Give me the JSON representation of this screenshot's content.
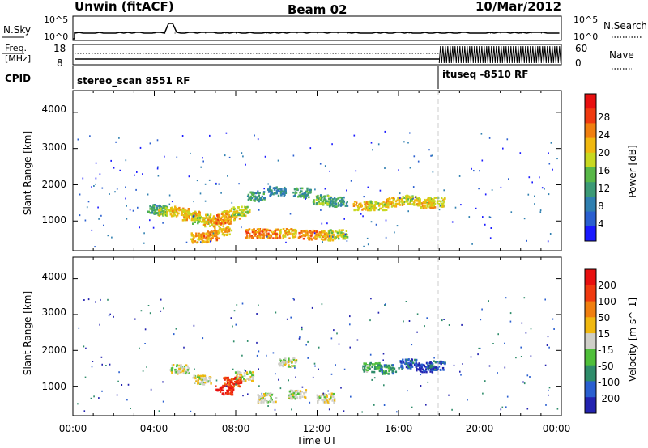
{
  "header": {
    "station": "Unwin (fitACF)",
    "beam": "Beam 02",
    "date": "10/Mar/2012"
  },
  "sky_panel": {
    "left_label": "N.Sky",
    "right_label": "N.Search",
    "left_ticks": [
      "10^5",
      "10^0"
    ],
    "right_ticks": [
      "10^5",
      "10^0"
    ]
  },
  "freq_panel": {
    "left_label_line1": "Freq.",
    "left_label_line2": "[MHz]",
    "right_label": "Nave",
    "left_ticks": [
      "18",
      "8"
    ],
    "right_ticks": [
      "60",
      "0"
    ]
  },
  "cpid": {
    "label": "CPID",
    "mode1": "stereo_scan 8551 RF",
    "mode2": "ituseq -8510 RF",
    "mode_switch_hour": 18.0
  },
  "x_axis": {
    "label": "Time UT",
    "ticks": [
      "00:00",
      "04:00",
      "08:00",
      "12:00",
      "16:00",
      "20:00",
      "00:00"
    ]
  },
  "chart_data": [
    {
      "type": "heatmap",
      "name": "power",
      "ylabel": "Slant Range [km]",
      "yticks": [
        "4000",
        "3000",
        "2000",
        "1000"
      ],
      "ylim": [
        180,
        4600
      ],
      "xlim_hours": [
        0,
        24
      ],
      "colorbar_label": "Power [dB]",
      "colorbar_ticks": [
        "28",
        "24",
        "20",
        "16",
        "12",
        "8",
        "4"
      ],
      "colors": [
        "#1a1aff",
        "#2a5fd0",
        "#2f7fb0",
        "#3c9a76",
        "#58b848",
        "#c8d820",
        "#f0b810",
        "#f07f10",
        "#f03a10",
        "#e81010"
      ],
      "blobs": [
        {
          "t": 4.1,
          "r": 1350,
          "c": 3
        },
        {
          "t": 4.6,
          "r": 1300,
          "c": 5
        },
        {
          "t": 5.2,
          "r": 1260,
          "c": 6
        },
        {
          "t": 5.8,
          "r": 1180,
          "c": 6
        },
        {
          "t": 6.3,
          "r": 1080,
          "c": 5
        },
        {
          "t": 6.8,
          "r": 1000,
          "c": 6
        },
        {
          "t": 7.3,
          "r": 1080,
          "c": 7
        },
        {
          "t": 7.7,
          "r": 1180,
          "c": 6
        },
        {
          "t": 8.2,
          "r": 1300,
          "c": 5
        },
        {
          "t": 6.2,
          "r": 560,
          "c": 6
        },
        {
          "t": 6.7,
          "r": 620,
          "c": 7
        },
        {
          "t": 7.3,
          "r": 760,
          "c": 6
        },
        {
          "t": 8.9,
          "r": 680,
          "c": 7
        },
        {
          "t": 9.7,
          "r": 670,
          "c": 7
        },
        {
          "t": 10.5,
          "r": 680,
          "c": 6
        },
        {
          "t": 11.5,
          "r": 640,
          "c": 7
        },
        {
          "t": 12.4,
          "r": 620,
          "c": 6
        },
        {
          "t": 13.0,
          "r": 660,
          "c": 5
        },
        {
          "t": 9.0,
          "r": 1700,
          "c": 3
        },
        {
          "t": 10.0,
          "r": 1850,
          "c": 2
        },
        {
          "t": 11.2,
          "r": 1800,
          "c": 3
        },
        {
          "t": 12.2,
          "r": 1600,
          "c": 4
        },
        {
          "t": 13.0,
          "r": 1550,
          "c": 3
        },
        {
          "t": 14.2,
          "r": 1450,
          "c": 6
        },
        {
          "t": 15.0,
          "r": 1450,
          "c": 5
        },
        {
          "t": 15.8,
          "r": 1550,
          "c": 6
        },
        {
          "t": 16.6,
          "r": 1600,
          "c": 5
        },
        {
          "t": 17.3,
          "r": 1500,
          "c": 6
        },
        {
          "t": 17.8,
          "r": 1550,
          "c": 5
        }
      ]
    },
    {
      "type": "heatmap",
      "name": "velocity",
      "ylabel": "Slant Range [km]",
      "yticks": [
        "4000",
        "3000",
        "2000",
        "1000"
      ],
      "ylim": [
        180,
        4600
      ],
      "xlim_hours": [
        0,
        24
      ],
      "colorbar_label": "Velocity [m s^-1]",
      "colorbar_ticks": [
        "200",
        "100",
        "50",
        "15",
        "-15",
        "-50",
        "-100",
        "-200"
      ],
      "colors": [
        "#2323b0",
        "#2a5fd0",
        "#2e8c6a",
        "#4fbf3a",
        "#cfcfc8",
        "#f0b810",
        "#f07f10",
        "#f03a10",
        "#e81010"
      ],
      "blobs": [
        {
          "t": 5.2,
          "r": 1500,
          "c": 4
        },
        {
          "t": 6.3,
          "r": 1200,
          "c": 4
        },
        {
          "t": 8.4,
          "r": 1300,
          "c": 4
        },
        {
          "t": 7.4,
          "r": 920,
          "c": 8
        },
        {
          "t": 7.8,
          "r": 1150,
          "c": 7
        },
        {
          "t": 10.5,
          "r": 1700,
          "c": 4
        },
        {
          "t": 11.0,
          "r": 800,
          "c": 4
        },
        {
          "t": 9.5,
          "r": 700,
          "c": 4
        },
        {
          "t": 12.4,
          "r": 700,
          "c": 4
        },
        {
          "t": 14.6,
          "r": 1550,
          "c": 3
        },
        {
          "t": 15.4,
          "r": 1500,
          "c": 2
        },
        {
          "t": 16.4,
          "r": 1650,
          "c": 1
        },
        {
          "t": 17.2,
          "r": 1550,
          "c": 0
        },
        {
          "t": 17.8,
          "r": 1600,
          "c": 1
        }
      ]
    }
  ],
  "colors": {
    "axis": "#000000",
    "mode_separator": "#cccccc"
  }
}
